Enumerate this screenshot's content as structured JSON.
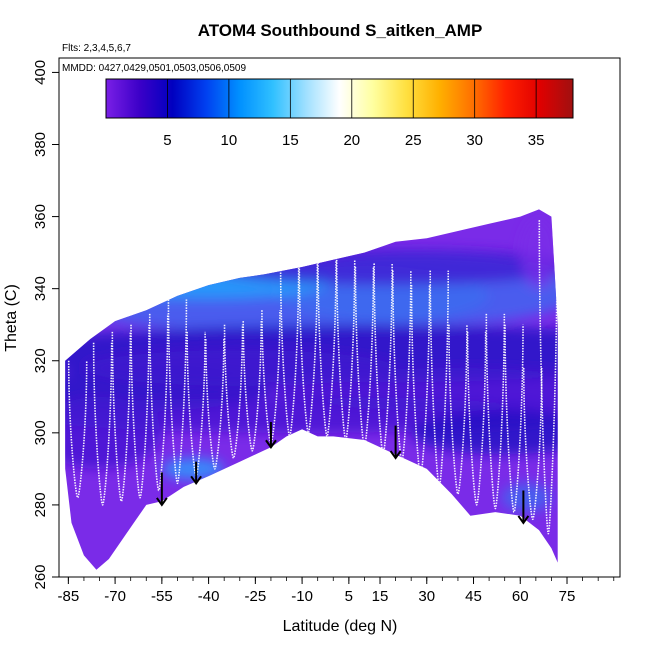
{
  "chart_data": {
    "type": "heatmap",
    "title": "ATOM4 Southbound S_aitken_AMP",
    "annotations": {
      "flights": "Flts: 2,3,4,5,6,7",
      "dates": "MMDD: 0427,0429,0501,0503,0506,0509"
    },
    "xlabel": "Latitude (deg N)",
    "ylabel": "Theta (C)",
    "xlim": [
      -88,
      92
    ],
    "ylim": [
      260,
      404
    ],
    "x_ticks": [
      -85,
      -70,
      -55,
      -40,
      -25,
      -10,
      5,
      15,
      30,
      45,
      60,
      75
    ],
    "y_ticks": [
      260,
      280,
      300,
      320,
      340,
      360,
      380,
      400
    ],
    "colorbar": {
      "range": [
        0,
        38
      ],
      "ticks": [
        5,
        10,
        15,
        20,
        25,
        30,
        35
      ],
      "colors": [
        "#7a1fe6",
        "#3c00c8",
        "#0000c0",
        "#0040f0",
        "#0090ff",
        "#30c0ff",
        "#a0e0ff",
        "#ffffff",
        "#ffffa0",
        "#ffe040",
        "#ffb000",
        "#ff7000",
        "#ff2000",
        "#e00000",
        "#a01010"
      ]
    },
    "field_colors": {
      "background": "#7a2be8",
      "mid": "#4016d0",
      "deep": "#1c0cc0",
      "light": "#3a6ef0",
      "bright": "#22a8ff"
    },
    "envelope_top": [
      [
        -86,
        320
      ],
      [
        -78,
        326
      ],
      [
        -70,
        331
      ],
      [
        -60,
        334
      ],
      [
        -50,
        338
      ],
      [
        -40,
        341
      ],
      [
        -30,
        343
      ],
      [
        -22,
        344
      ],
      [
        -10,
        346
      ],
      [
        0,
        348
      ],
      [
        10,
        350
      ],
      [
        20,
        353
      ],
      [
        30,
        354
      ],
      [
        40,
        356
      ],
      [
        50,
        358
      ],
      [
        60,
        360
      ],
      [
        66,
        362
      ],
      [
        70,
        360
      ],
      [
        72,
        330
      ],
      [
        72,
        290
      ]
    ],
    "envelope_bottom": [
      [
        72,
        264
      ],
      [
        70,
        268
      ],
      [
        66,
        273
      ],
      [
        60,
        277
      ],
      [
        52,
        278
      ],
      [
        44,
        277
      ],
      [
        38,
        283
      ],
      [
        30,
        290
      ],
      [
        20,
        294
      ],
      [
        10,
        298
      ],
      [
        0,
        299
      ],
      [
        -5,
        299
      ],
      [
        -10,
        301
      ],
      [
        -15,
        299
      ],
      [
        -20,
        296
      ],
      [
        -30,
        292
      ],
      [
        -40,
        288
      ],
      [
        -48,
        285
      ],
      [
        -55,
        281
      ],
      [
        -60,
        280
      ],
      [
        -64,
        275
      ],
      [
        -68,
        270
      ],
      [
        -72,
        265
      ],
      [
        -76,
        262
      ],
      [
        -80,
        266
      ],
      [
        -84,
        275
      ],
      [
        -86,
        290
      ]
    ],
    "profile_tracks": [
      {
        "x": -82,
        "bottom": 282,
        "top": 320
      },
      {
        "x": -74,
        "bottom": 280,
        "top": 325
      },
      {
        "x": -68,
        "bottom": 281,
        "top": 328
      },
      {
        "x": -62,
        "bottom": 282,
        "top": 330
      },
      {
        "x": -56,
        "bottom": 284,
        "top": 333
      },
      {
        "x": -50,
        "bottom": 286,
        "top": 337
      },
      {
        "x": -44,
        "bottom": 288,
        "top": 328
      },
      {
        "x": -38,
        "bottom": 290,
        "top": 326
      },
      {
        "x": -32,
        "bottom": 293,
        "top": 330
      },
      {
        "x": -26,
        "bottom": 295,
        "top": 331
      },
      {
        "x": -20,
        "bottom": 297,
        "top": 334
      },
      {
        "x": -14,
        "bottom": 299,
        "top": 346
      },
      {
        "x": -8,
        "bottom": 300,
        "top": 347
      },
      {
        "x": -2,
        "bottom": 299,
        "top": 348
      },
      {
        "x": 4,
        "bottom": 298,
        "top": 348
      },
      {
        "x": 10,
        "bottom": 296,
        "top": 346
      },
      {
        "x": 16,
        "bottom": 294,
        "top": 347
      },
      {
        "x": 22,
        "bottom": 292,
        "top": 345
      },
      {
        "x": 28,
        "bottom": 288,
        "top": 341
      },
      {
        "x": 34,
        "bottom": 285,
        "top": 345
      },
      {
        "x": 40,
        "bottom": 283,
        "top": 330
      },
      {
        "x": 46,
        "bottom": 280,
        "top": 328
      },
      {
        "x": 52,
        "bottom": 279,
        "top": 333
      },
      {
        "x": 58,
        "bottom": 278,
        "top": 330
      },
      {
        "x": 64,
        "bottom": 276,
        "top": 318
      },
      {
        "x": 69,
        "bottom": 272,
        "top": 359
      }
    ],
    "arrows": [
      {
        "x": -55,
        "theta_top": 289,
        "theta_bottom": 280
      },
      {
        "x": -44,
        "theta_top": 292,
        "theta_bottom": 286
      },
      {
        "x": -20,
        "theta_top": 303,
        "theta_bottom": 296
      },
      {
        "x": 20,
        "theta_top": 302,
        "theta_bottom": 293
      },
      {
        "x": 61,
        "theta_top": 284,
        "theta_bottom": 275
      }
    ]
  }
}
